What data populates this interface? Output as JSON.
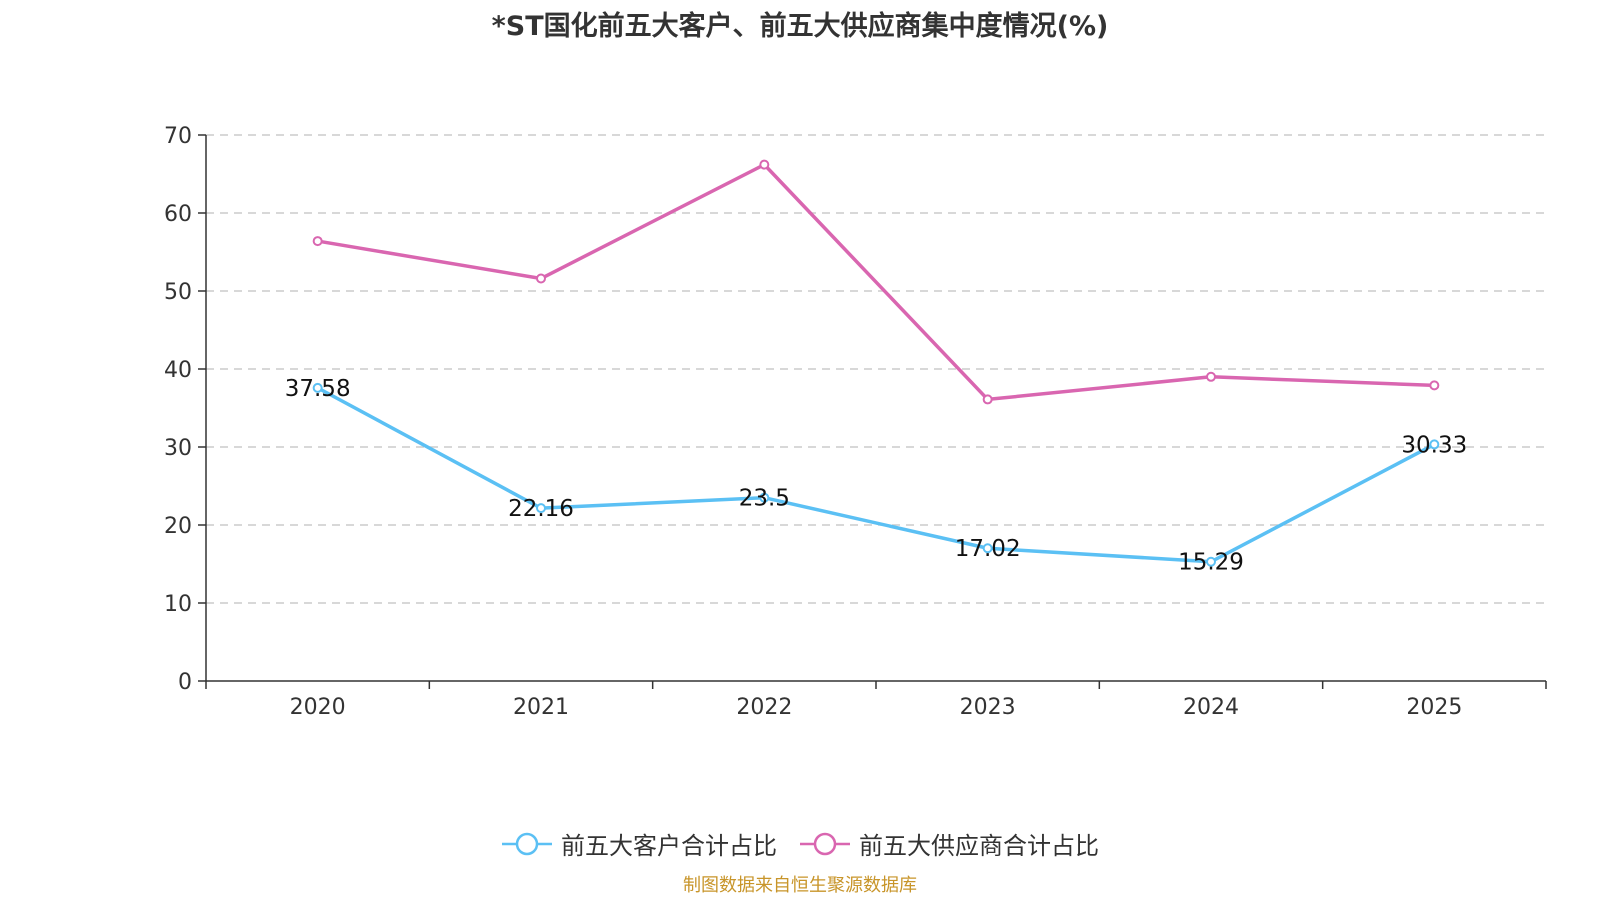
{
  "chart_data": {
    "type": "line",
    "title": "*ST国化前五大客户、前五大供应商集中度情况(%)",
    "categories": [
      "2020",
      "2021",
      "2022",
      "2023",
      "2024",
      "2025"
    ],
    "xlabel": "",
    "ylabel": "",
    "ylim": [
      0,
      70
    ],
    "yticks": [
      0,
      10,
      20,
      30,
      40,
      50,
      60,
      70
    ],
    "grid": true,
    "legend_position": "bottom",
    "series": [
      {
        "name": "前五大客户合计占比",
        "color": "#5bc0f4",
        "values": [
          37.58,
          22.16,
          23.5,
          17.02,
          15.29,
          30.33
        ],
        "labels": [
          "37.58",
          "22.16",
          "23.5",
          "17.02",
          "15.29",
          "30.33"
        ],
        "show_labels": true
      },
      {
        "name": "前五大供应商合计占比",
        "color": "#d966b0",
        "values": [
          56.4,
          51.6,
          66.2,
          36.1,
          39.0,
          37.9
        ],
        "show_labels": false
      }
    ]
  },
  "source_note": "制图数据来自恒生聚源数据库"
}
